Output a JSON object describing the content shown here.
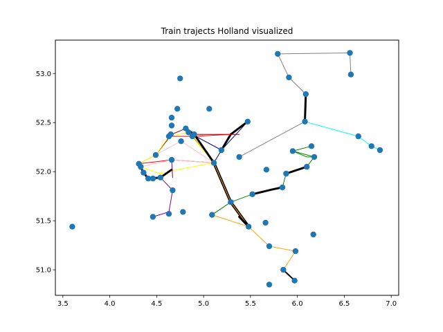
{
  "chart_data": {
    "type": "scatter",
    "title": "Train trajects Holland visualized",
    "xlabel": "",
    "ylabel": "",
    "xlim": [
      3.42,
      7.08
    ],
    "ylim": [
      50.74,
      53.34
    ],
    "xticks": [
      3.5,
      4.0,
      4.5,
      5.0,
      5.5,
      6.0,
      6.5,
      7.0
    ],
    "xtick_labels": [
      "3.5",
      "4.0",
      "4.5",
      "5.0",
      "5.5",
      "6.0",
      "6.5",
      "7.0"
    ],
    "yticks": [
      51.0,
      51.5,
      52.0,
      52.5,
      53.0
    ],
    "ytick_labels": [
      "51.0",
      "51.5",
      "52.0",
      "52.5",
      "53.0"
    ],
    "grid": false,
    "point_color": "#1f77b4",
    "points": [
      {
        "x": 3.6,
        "y": 51.44
      },
      {
        "x": 4.31,
        "y": 52.08
      },
      {
        "x": 4.33,
        "y": 52.05
      },
      {
        "x": 4.36,
        "y": 51.99
      },
      {
        "x": 4.41,
        "y": 51.93
      },
      {
        "x": 4.46,
        "y": 51.93
      },
      {
        "x": 4.46,
        "y": 51.54
      },
      {
        "x": 4.49,
        "y": 52.17
      },
      {
        "x": 4.54,
        "y": 51.94
      },
      {
        "x": 4.63,
        "y": 51.57
      },
      {
        "x": 4.63,
        "y": 52.36
      },
      {
        "x": 4.65,
        "y": 52.38
      },
      {
        "x": 4.66,
        "y": 52.55
      },
      {
        "x": 4.66,
        "y": 52.47
      },
      {
        "x": 4.66,
        "y": 52.12
      },
      {
        "x": 4.67,
        "y": 51.81
      },
      {
        "x": 4.72,
        "y": 52.64
      },
      {
        "x": 4.75,
        "y": 52.95
      },
      {
        "x": 4.76,
        "y": 52.31
      },
      {
        "x": 4.78,
        "y": 51.59
      },
      {
        "x": 4.81,
        "y": 52.44
      },
      {
        "x": 4.84,
        "y": 52.4
      },
      {
        "x": 4.88,
        "y": 52.36
      },
      {
        "x": 4.9,
        "y": 52.38
      },
      {
        "x": 5.06,
        "y": 52.64
      },
      {
        "x": 5.09,
        "y": 51.56
      },
      {
        "x": 5.11,
        "y": 52.09
      },
      {
        "x": 5.19,
        "y": 52.22
      },
      {
        "x": 5.29,
        "y": 51.69
      },
      {
        "x": 5.38,
        "y": 52.15
      },
      {
        "x": 5.47,
        "y": 52.51
      },
      {
        "x": 5.48,
        "y": 51.44
      },
      {
        "x": 5.52,
        "y": 51.77
      },
      {
        "x": 5.66,
        "y": 51.48
      },
      {
        "x": 5.67,
        "y": 52.02
      },
      {
        "x": 5.7,
        "y": 51.24
      },
      {
        "x": 5.7,
        "y": 50.85
      },
      {
        "x": 5.79,
        "y": 53.2
      },
      {
        "x": 5.84,
        "y": 51.84
      },
      {
        "x": 5.85,
        "y": 51.0
      },
      {
        "x": 5.88,
        "y": 51.98
      },
      {
        "x": 5.91,
        "y": 52.96
      },
      {
        "x": 5.95,
        "y": 52.21
      },
      {
        "x": 5.97,
        "y": 50.89
      },
      {
        "x": 5.98,
        "y": 51.19
      },
      {
        "x": 6.08,
        "y": 52.51
      },
      {
        "x": 6.09,
        "y": 52.79
      },
      {
        "x": 6.1,
        "y": 52.05
      },
      {
        "x": 6.15,
        "y": 52.26
      },
      {
        "x": 6.17,
        "y": 51.36
      },
      {
        "x": 6.18,
        "y": 52.15
      },
      {
        "x": 6.56,
        "y": 53.21
      },
      {
        "x": 6.57,
        "y": 52.99
      },
      {
        "x": 6.65,
        "y": 52.36
      },
      {
        "x": 6.79,
        "y": 52.26
      },
      {
        "x": 6.88,
        "y": 52.22
      }
    ],
    "routes": [
      {
        "color": "#808080",
        "path": [
          [
            6.08,
            52.51
          ],
          [
            5.38,
            52.15
          ]
        ]
      },
      {
        "color": "#808080",
        "path": [
          [
            6.09,
            52.79
          ],
          [
            5.91,
            52.96
          ],
          [
            5.79,
            53.2
          ],
          [
            6.56,
            53.21
          ],
          [
            6.57,
            52.99
          ]
        ]
      },
      {
        "color": "#00ffff",
        "path": [
          [
            6.09,
            52.79
          ],
          [
            6.08,
            52.51
          ],
          [
            6.65,
            52.36
          ],
          [
            6.79,
            52.26
          ],
          [
            6.88,
            52.22
          ]
        ]
      },
      {
        "color": "#000000",
        "width": 3,
        "path": [
          [
            6.09,
            52.79
          ],
          [
            6.08,
            52.51
          ]
        ]
      },
      {
        "color": "#00008b",
        "path": [
          [
            5.11,
            52.09
          ],
          [
            5.19,
            52.22
          ],
          [
            5.47,
            52.51
          ]
        ]
      },
      {
        "color": "#00008b",
        "path": [
          [
            4.84,
            52.4
          ],
          [
            5.19,
            52.22
          ]
        ]
      },
      {
        "color": "#000000",
        "width": 3,
        "path": [
          [
            5.19,
            52.22
          ],
          [
            5.29,
            52.38
          ],
          [
            5.47,
            52.51
          ]
        ]
      },
      {
        "color": "#8b0000",
        "path": [
          [
            4.31,
            52.08
          ],
          [
            4.49,
            52.17
          ],
          [
            4.66,
            52.38
          ],
          [
            4.81,
            52.44
          ],
          [
            5.11,
            52.09
          ]
        ]
      },
      {
        "color": "#8b0000",
        "path": [
          [
            4.9,
            52.38
          ],
          [
            5.38,
            52.38
          ]
        ]
      },
      {
        "color": "#ff0000",
        "path": [
          [
            4.31,
            52.08
          ],
          [
            4.66,
            52.12
          ],
          [
            5.11,
            52.09
          ]
        ]
      },
      {
        "color": "#ff0000",
        "path": [
          [
            4.63,
            52.36
          ],
          [
            4.88,
            52.36
          ],
          [
            5.29,
            52.38
          ]
        ]
      },
      {
        "color": "#ffc0cb",
        "path": [
          [
            4.31,
            52.08
          ],
          [
            4.76,
            52.31
          ],
          [
            5.11,
            52.09
          ]
        ]
      },
      {
        "color": "#ffc0cb",
        "path": [
          [
            4.33,
            52.05
          ],
          [
            4.66,
            52.12
          ],
          [
            5.11,
            52.09
          ]
        ]
      },
      {
        "color": "#ffff00",
        "path": [
          [
            4.31,
            52.08
          ],
          [
            4.49,
            52.17
          ],
          [
            4.63,
            52.36
          ],
          [
            4.84,
            52.4
          ],
          [
            5.11,
            52.09
          ],
          [
            4.88,
            52.38
          ]
        ]
      },
      {
        "color": "#ffff00",
        "path": [
          [
            4.33,
            52.05
          ],
          [
            4.54,
            51.98
          ],
          [
            4.72,
            52.02
          ],
          [
            5.11,
            52.09
          ]
        ]
      },
      {
        "color": "#000000",
        "width": 3,
        "path": [
          [
            4.31,
            52.08
          ],
          [
            4.36,
            51.99
          ],
          [
            4.41,
            51.93
          ],
          [
            4.54,
            51.94
          ],
          [
            4.66,
            52.02
          ]
        ]
      },
      {
        "color": "#000000",
        "width": 3,
        "path": [
          [
            4.81,
            52.44
          ],
          [
            4.9,
            52.38
          ],
          [
            5.11,
            52.09
          ]
        ]
      },
      {
        "color": "#800080",
        "path": [
          [
            4.33,
            52.05
          ],
          [
            4.41,
            51.93
          ],
          [
            4.54,
            51.94
          ],
          [
            4.67,
            51.81
          ],
          [
            4.63,
            51.59
          ],
          [
            4.46,
            51.54
          ]
        ]
      },
      {
        "color": "#800080",
        "path": [
          [
            4.66,
            52.12
          ],
          [
            4.67,
            51.94
          ]
        ]
      },
      {
        "color": "#008000",
        "path": [
          [
            5.09,
            51.56
          ],
          [
            5.29,
            51.69
          ],
          [
            5.52,
            51.77
          ],
          [
            5.84,
            51.84
          ],
          [
            5.88,
            51.98
          ],
          [
            6.1,
            52.05
          ],
          [
            6.18,
            52.15
          ],
          [
            5.95,
            52.21
          ],
          [
            6.15,
            52.26
          ]
        ]
      },
      {
        "color": "#008000",
        "path": [
          [
            5.95,
            52.21
          ],
          [
            6.1,
            52.15
          ],
          [
            6.18,
            52.15
          ]
        ]
      },
      {
        "color": "#000000",
        "width": 3,
        "path": [
          [
            5.52,
            51.77
          ],
          [
            5.74,
            51.82
          ],
          [
            5.84,
            51.84
          ]
        ]
      },
      {
        "color": "#000000",
        "width": 3,
        "path": [
          [
            5.88,
            51.98
          ],
          [
            6.1,
            52.05
          ]
        ]
      },
      {
        "color": "#808000",
        "path": [
          [
            5.11,
            52.09
          ],
          [
            5.29,
            51.69
          ],
          [
            5.48,
            51.44
          ]
        ]
      },
      {
        "color": "#000000",
        "width": 4,
        "path": [
          [
            5.11,
            52.09
          ],
          [
            5.29,
            51.69
          ],
          [
            5.48,
            51.44
          ]
        ]
      },
      {
        "color": "#ffa500",
        "path": [
          [
            5.11,
            52.09
          ],
          [
            5.29,
            51.69
          ],
          [
            5.48,
            51.44
          ]
        ]
      },
      {
        "color": "#ffa500",
        "path": [
          [
            5.09,
            51.56
          ],
          [
            5.48,
            51.44
          ],
          [
            5.7,
            51.24
          ],
          [
            5.98,
            51.19
          ],
          [
            5.85,
            51.0
          ],
          [
            5.97,
            50.89
          ]
        ]
      },
      {
        "color": "#000000",
        "width": 3,
        "path": [
          [
            5.38,
            51.54
          ],
          [
            5.48,
            51.44
          ]
        ]
      },
      {
        "color": "#000000",
        "width": 2,
        "path": [
          [
            5.85,
            51.0
          ],
          [
            5.97,
            50.89
          ]
        ]
      }
    ]
  }
}
